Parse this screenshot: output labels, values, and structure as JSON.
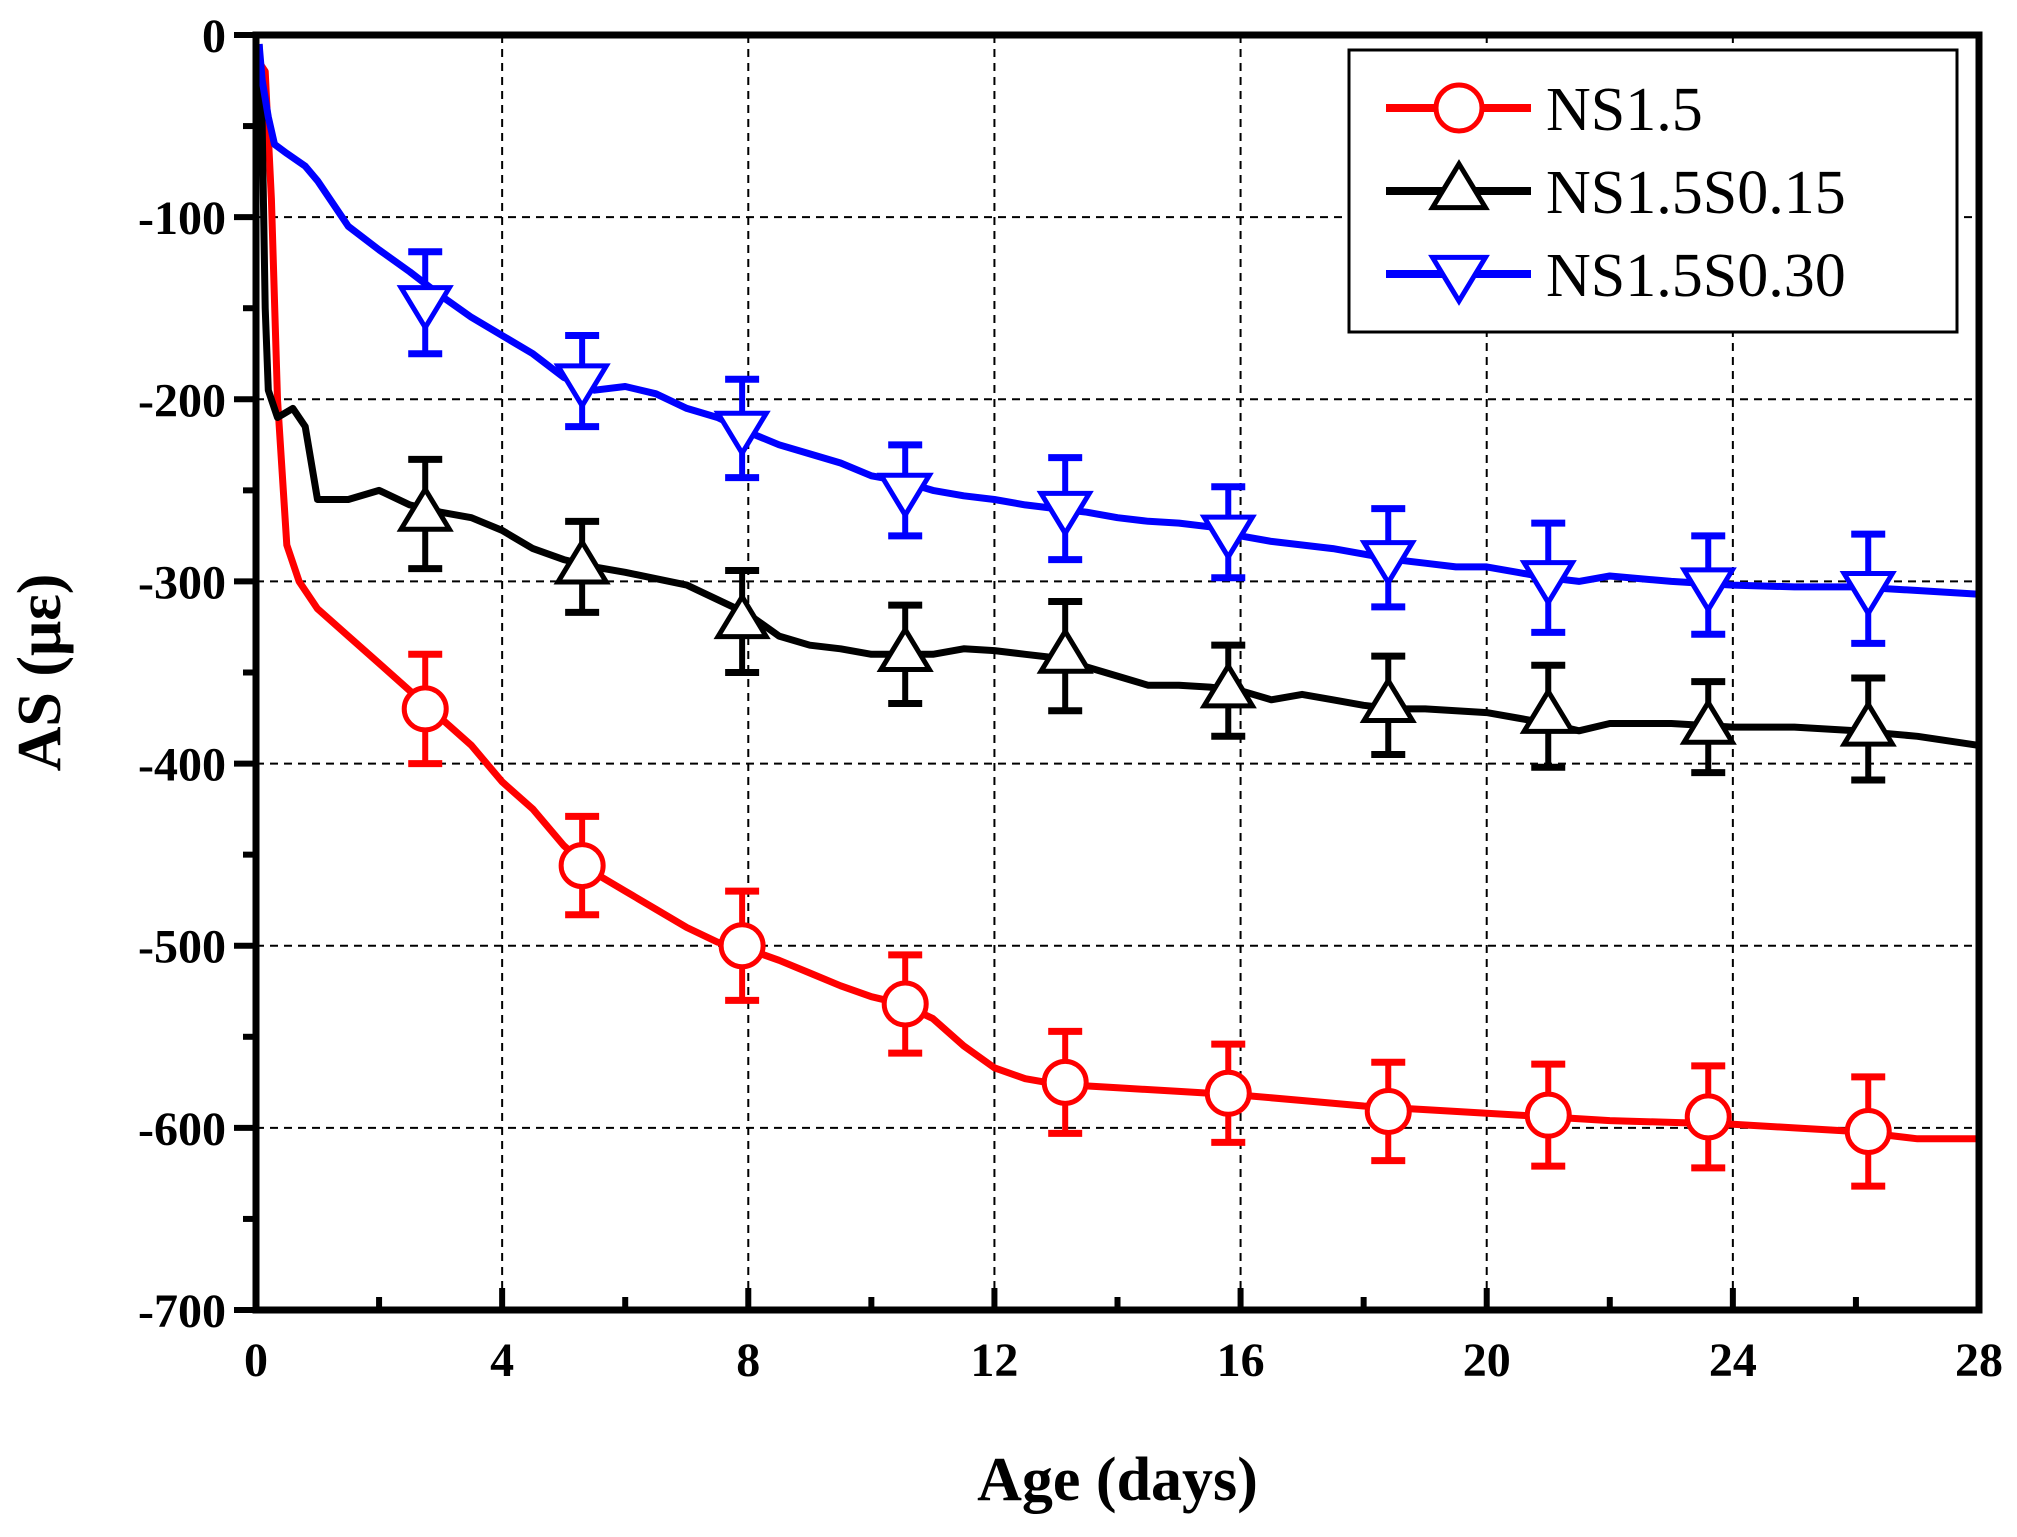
{
  "chart_data": {
    "type": "line",
    "title": "",
    "xlabel": "Age (days)",
    "ylabel": "AS (με)",
    "xlim": [
      0,
      28
    ],
    "ylim": [
      -700,
      0
    ],
    "x_ticks": [
      0,
      4,
      8,
      12,
      16,
      20,
      24,
      28
    ],
    "y_ticks": [
      0,
      -100,
      -200,
      -300,
      -400,
      -500,
      -600,
      -700
    ],
    "grid": true,
    "legend_position": "top-right",
    "series": [
      {
        "name": "NS1.5",
        "color": "#ff0000",
        "marker": "circle",
        "curve": [
          [
            0.05,
            -15
          ],
          [
            0.15,
            -20
          ],
          [
            0.25,
            -90
          ],
          [
            0.35,
            -200
          ],
          [
            0.5,
            -280
          ],
          [
            0.7,
            -300
          ],
          [
            1,
            -315
          ],
          [
            1.5,
            -330
          ],
          [
            2,
            -345
          ],
          [
            2.5,
            -360
          ],
          [
            3,
            -375
          ],
          [
            3.5,
            -390
          ],
          [
            4,
            -410
          ],
          [
            4.5,
            -425
          ],
          [
            5,
            -445
          ],
          [
            5.5,
            -460
          ],
          [
            6,
            -470
          ],
          [
            6.5,
            -480
          ],
          [
            7,
            -490
          ],
          [
            7.5,
            -498
          ],
          [
            8,
            -502
          ],
          [
            8.5,
            -508
          ],
          [
            9,
            -515
          ],
          [
            9.5,
            -522
          ],
          [
            10,
            -528
          ],
          [
            10.5,
            -532
          ],
          [
            11,
            -540
          ],
          [
            11.5,
            -555
          ],
          [
            12,
            -567
          ],
          [
            12.5,
            -573
          ],
          [
            13,
            -576
          ],
          [
            14,
            -578
          ],
          [
            15,
            -580
          ],
          [
            16,
            -582
          ],
          [
            17,
            -585
          ],
          [
            18,
            -588
          ],
          [
            19,
            -590
          ],
          [
            20,
            -592
          ],
          [
            21,
            -594
          ],
          [
            22,
            -596
          ],
          [
            23,
            -597
          ],
          [
            24,
            -598
          ],
          [
            25,
            -600
          ],
          [
            26,
            -602
          ],
          [
            27,
            -606
          ],
          [
            28,
            -606
          ]
        ],
        "points": [
          {
            "x": 2.75,
            "y": -370,
            "err": 30
          },
          {
            "x": 5.3,
            "y": -456,
            "err": 27
          },
          {
            "x": 7.9,
            "y": -500,
            "err": 30
          },
          {
            "x": 10.55,
            "y": -532,
            "err": 27
          },
          {
            "x": 13.15,
            "y": -575,
            "err": 28
          },
          {
            "x": 15.8,
            "y": -581,
            "err": 27
          },
          {
            "x": 18.4,
            "y": -591,
            "err": 27
          },
          {
            "x": 21.0,
            "y": -593,
            "err": 28
          },
          {
            "x": 23.6,
            "y": -594,
            "err": 28
          },
          {
            "x": 26.2,
            "y": -602,
            "err": 30
          }
        ]
      },
      {
        "name": "NS1.5S0.15",
        "color": "#000000",
        "marker": "triangle-up",
        "curve": [
          [
            0.05,
            -5
          ],
          [
            0.1,
            -50
          ],
          [
            0.15,
            -150
          ],
          [
            0.2,
            -195
          ],
          [
            0.35,
            -210
          ],
          [
            0.6,
            -205
          ],
          [
            0.8,
            -215
          ],
          [
            1,
            -255
          ],
          [
            1.5,
            -255
          ],
          [
            2,
            -250
          ],
          [
            2.5,
            -258
          ],
          [
            3,
            -262
          ],
          [
            3.5,
            -265
          ],
          [
            4,
            -272
          ],
          [
            4.5,
            -282
          ],
          [
            5,
            -288
          ],
          [
            5.5,
            -292
          ],
          [
            6,
            -295
          ],
          [
            7,
            -302
          ],
          [
            8,
            -318
          ],
          [
            8.5,
            -330
          ],
          [
            9,
            -335
          ],
          [
            9.5,
            -337
          ],
          [
            10,
            -340
          ],
          [
            11,
            -340
          ],
          [
            11.5,
            -337
          ],
          [
            12,
            -338
          ],
          [
            12.5,
            -340
          ],
          [
            13,
            -342
          ],
          [
            13.5,
            -347
          ],
          [
            14,
            -352
          ],
          [
            14.5,
            -357
          ],
          [
            15,
            -357
          ],
          [
            15.5,
            -358
          ],
          [
            16,
            -360
          ],
          [
            16.5,
            -365
          ],
          [
            17,
            -362
          ],
          [
            17.5,
            -365
          ],
          [
            18,
            -368
          ],
          [
            18.5,
            -370
          ],
          [
            19,
            -370
          ],
          [
            20,
            -372
          ],
          [
            20.5,
            -375
          ],
          [
            21,
            -378
          ],
          [
            21.5,
            -382
          ],
          [
            22,
            -378
          ],
          [
            23,
            -378
          ],
          [
            24,
            -380
          ],
          [
            25,
            -380
          ],
          [
            26,
            -382
          ],
          [
            27,
            -385
          ],
          [
            28,
            -390
          ]
        ],
        "points": [
          {
            "x": 2.75,
            "y": -263,
            "err": 30
          },
          {
            "x": 5.3,
            "y": -292,
            "err": 25
          },
          {
            "x": 7.9,
            "y": -322,
            "err": 28
          },
          {
            "x": 10.55,
            "y": -340,
            "err": 27
          },
          {
            "x": 13.15,
            "y": -341,
            "err": 30
          },
          {
            "x": 15.8,
            "y": -360,
            "err": 25
          },
          {
            "x": 18.4,
            "y": -368,
            "err": 27
          },
          {
            "x": 21.0,
            "y": -374,
            "err": 28
          },
          {
            "x": 23.6,
            "y": -380,
            "err": 25
          },
          {
            "x": 26.2,
            "y": -381,
            "err": 28
          }
        ]
      },
      {
        "name": "NS1.5S0.30",
        "color": "#0000ff",
        "marker": "triangle-down",
        "curve": [
          [
            0.05,
            -5
          ],
          [
            0.1,
            -25
          ],
          [
            0.2,
            -45
          ],
          [
            0.3,
            -60
          ],
          [
            0.5,
            -65
          ],
          [
            0.8,
            -72
          ],
          [
            1,
            -80
          ],
          [
            1.5,
            -105
          ],
          [
            2,
            -118
          ],
          [
            2.5,
            -130
          ],
          [
            3,
            -143
          ],
          [
            3.5,
            -155
          ],
          [
            4,
            -165
          ],
          [
            4.5,
            -175
          ],
          [
            5,
            -188
          ],
          [
            5.5,
            -195
          ],
          [
            6,
            -193
          ],
          [
            6.5,
            -197
          ],
          [
            7,
            -205
          ],
          [
            7.5,
            -210
          ],
          [
            8,
            -218
          ],
          [
            8.5,
            -225
          ],
          [
            9,
            -230
          ],
          [
            9.5,
            -235
          ],
          [
            10,
            -242
          ],
          [
            10.5,
            -245
          ],
          [
            11,
            -250
          ],
          [
            11.5,
            -253
          ],
          [
            12,
            -255
          ],
          [
            12.5,
            -258
          ],
          [
            13,
            -260
          ],
          [
            13.5,
            -262
          ],
          [
            14,
            -265
          ],
          [
            14.5,
            -267
          ],
          [
            15,
            -268
          ],
          [
            15.5,
            -270
          ],
          [
            16,
            -275
          ],
          [
            16.5,
            -278
          ],
          [
            17,
            -280
          ],
          [
            17.5,
            -282
          ],
          [
            18,
            -285
          ],
          [
            18.5,
            -288
          ],
          [
            19,
            -290
          ],
          [
            19.5,
            -292
          ],
          [
            20,
            -292
          ],
          [
            20.5,
            -295
          ],
          [
            21,
            -298
          ],
          [
            21.5,
            -300
          ],
          [
            22,
            -297
          ],
          [
            23,
            -300
          ],
          [
            24,
            -302
          ],
          [
            25,
            -303
          ],
          [
            26,
            -303
          ],
          [
            27,
            -305
          ],
          [
            28,
            -307
          ]
        ],
        "points": [
          {
            "x": 2.75,
            "y": -147,
            "err": 28
          },
          {
            "x": 5.3,
            "y": -190,
            "err": 25
          },
          {
            "x": 7.9,
            "y": -216,
            "err": 27
          },
          {
            "x": 10.55,
            "y": -250,
            "err": 25
          },
          {
            "x": 13.15,
            "y": -260,
            "err": 28
          },
          {
            "x": 15.8,
            "y": -273,
            "err": 25
          },
          {
            "x": 18.4,
            "y": -287,
            "err": 27
          },
          {
            "x": 21.0,
            "y": -298,
            "err": 30
          },
          {
            "x": 23.6,
            "y": -302,
            "err": 27
          },
          {
            "x": 26.2,
            "y": -304,
            "err": 30
          }
        ]
      }
    ]
  }
}
